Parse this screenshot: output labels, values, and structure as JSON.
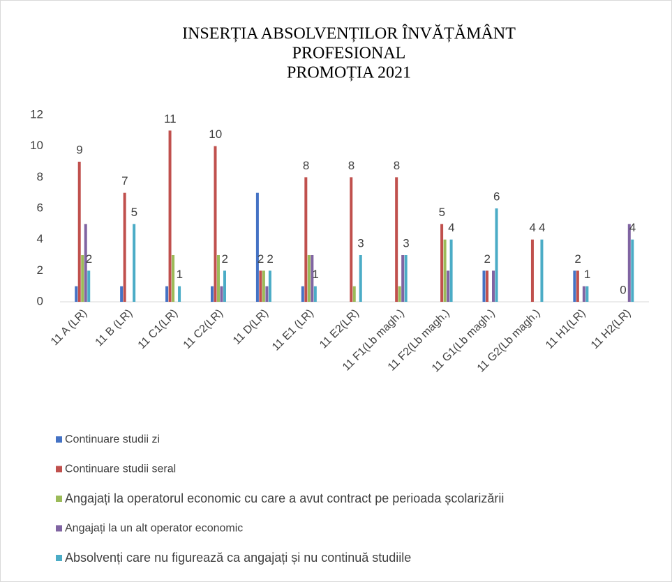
{
  "chart_data": {
    "type": "bar",
    "title": [
      "INSERȚIA ABSOLVENȚILOR ÎNVĂȚĂMÂNT",
      "PROFESIONAL",
      "PROMOȚIA 2021"
    ],
    "categories": [
      "11 A (LR)",
      "11 B (LR)",
      "11 C1(LR)",
      "11 C2(LR)",
      "11 D(LR)",
      "11 E1 (LR)",
      "11 E2(LR)",
      "11 F1(Lb magh.)",
      "11 F2(Lb magh.)",
      "11 G1(Lb magh.)",
      "11 G2(Lb magh.)",
      "11 H1(LR)",
      "11 H2(LR)"
    ],
    "series": [
      {
        "name": "Continuare studii zi",
        "color": "#4472c4",
        "data_labels": false,
        "values": [
          1,
          1,
          1,
          1,
          7,
          1,
          0,
          0,
          0,
          2,
          0,
          2,
          0
        ]
      },
      {
        "name": "Continuare studii seral",
        "color": "#c0504d",
        "data_labels": true,
        "values": [
          9,
          7,
          11,
          10,
          2,
          8,
          8,
          8,
          5,
          2,
          4,
          2,
          0
        ]
      },
      {
        "name": "Angajați la operatorul economic cu care a avut contract pe perioada școlarizării",
        "color": "#9bbb59",
        "data_labels": false,
        "values": [
          3,
          0,
          3,
          3,
          2,
          3,
          1,
          1,
          4,
          0,
          0,
          0,
          0
        ]
      },
      {
        "name": "Angajați la un alt operator economic",
        "color": "#8064a2",
        "data_labels": false,
        "values": [
          5,
          0,
          0,
          1,
          1,
          3,
          0,
          3,
          2,
          2,
          0,
          1,
          5
        ]
      },
      {
        "name": "Absolvenți care nu figurează ca angajați și nu continuă studiile",
        "color": "#4bacc6",
        "data_labels": true,
        "values": [
          2,
          5,
          1,
          2,
          2,
          1,
          3,
          3,
          4,
          6,
          4,
          1,
          4
        ]
      }
    ],
    "ylim": [
      0,
      12
    ],
    "yticks": [
      0,
      2,
      4,
      6,
      8,
      10,
      12
    ],
    "grid": false
  }
}
